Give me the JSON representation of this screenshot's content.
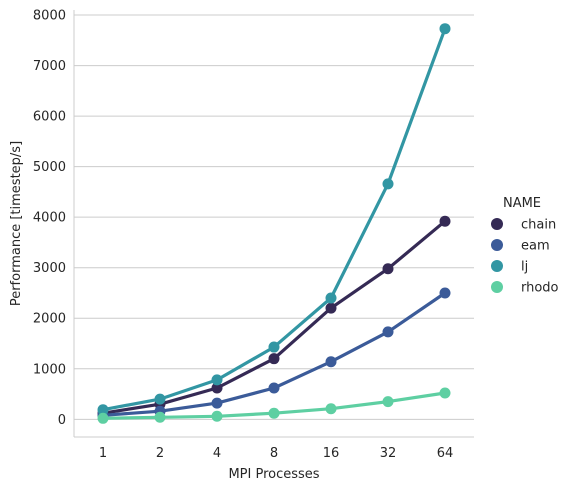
{
  "chart_data": {
    "type": "line",
    "xlabel": "MPI Processes",
    "ylabel": "Performance [timestep/s]",
    "categories": [
      "1",
      "2",
      "4",
      "8",
      "16",
      "32",
      "64"
    ],
    "ylim": [
      -350,
      8100
    ],
    "yticks": [
      0,
      1000,
      2000,
      3000,
      4000,
      5000,
      6000,
      7000,
      8000
    ],
    "grid": "horizontal",
    "legend": {
      "title": "NAME",
      "placement": "right"
    },
    "series": [
      {
        "name": "chain",
        "color": "#352a55",
        "values": [
          120,
          300,
          620,
          1200,
          2200,
          2980,
          3920
        ]
      },
      {
        "name": "eam",
        "color": "#3b5b99",
        "values": [
          80,
          160,
          320,
          620,
          1140,
          1730,
          2500
        ]
      },
      {
        "name": "lj",
        "color": "#3296a3",
        "values": [
          190,
          400,
          780,
          1430,
          2400,
          4660,
          7730
        ]
      },
      {
        "name": "rhodo",
        "color": "#5ecfa2",
        "values": [
          20,
          40,
          60,
          120,
          210,
          350,
          520
        ]
      }
    ]
  }
}
